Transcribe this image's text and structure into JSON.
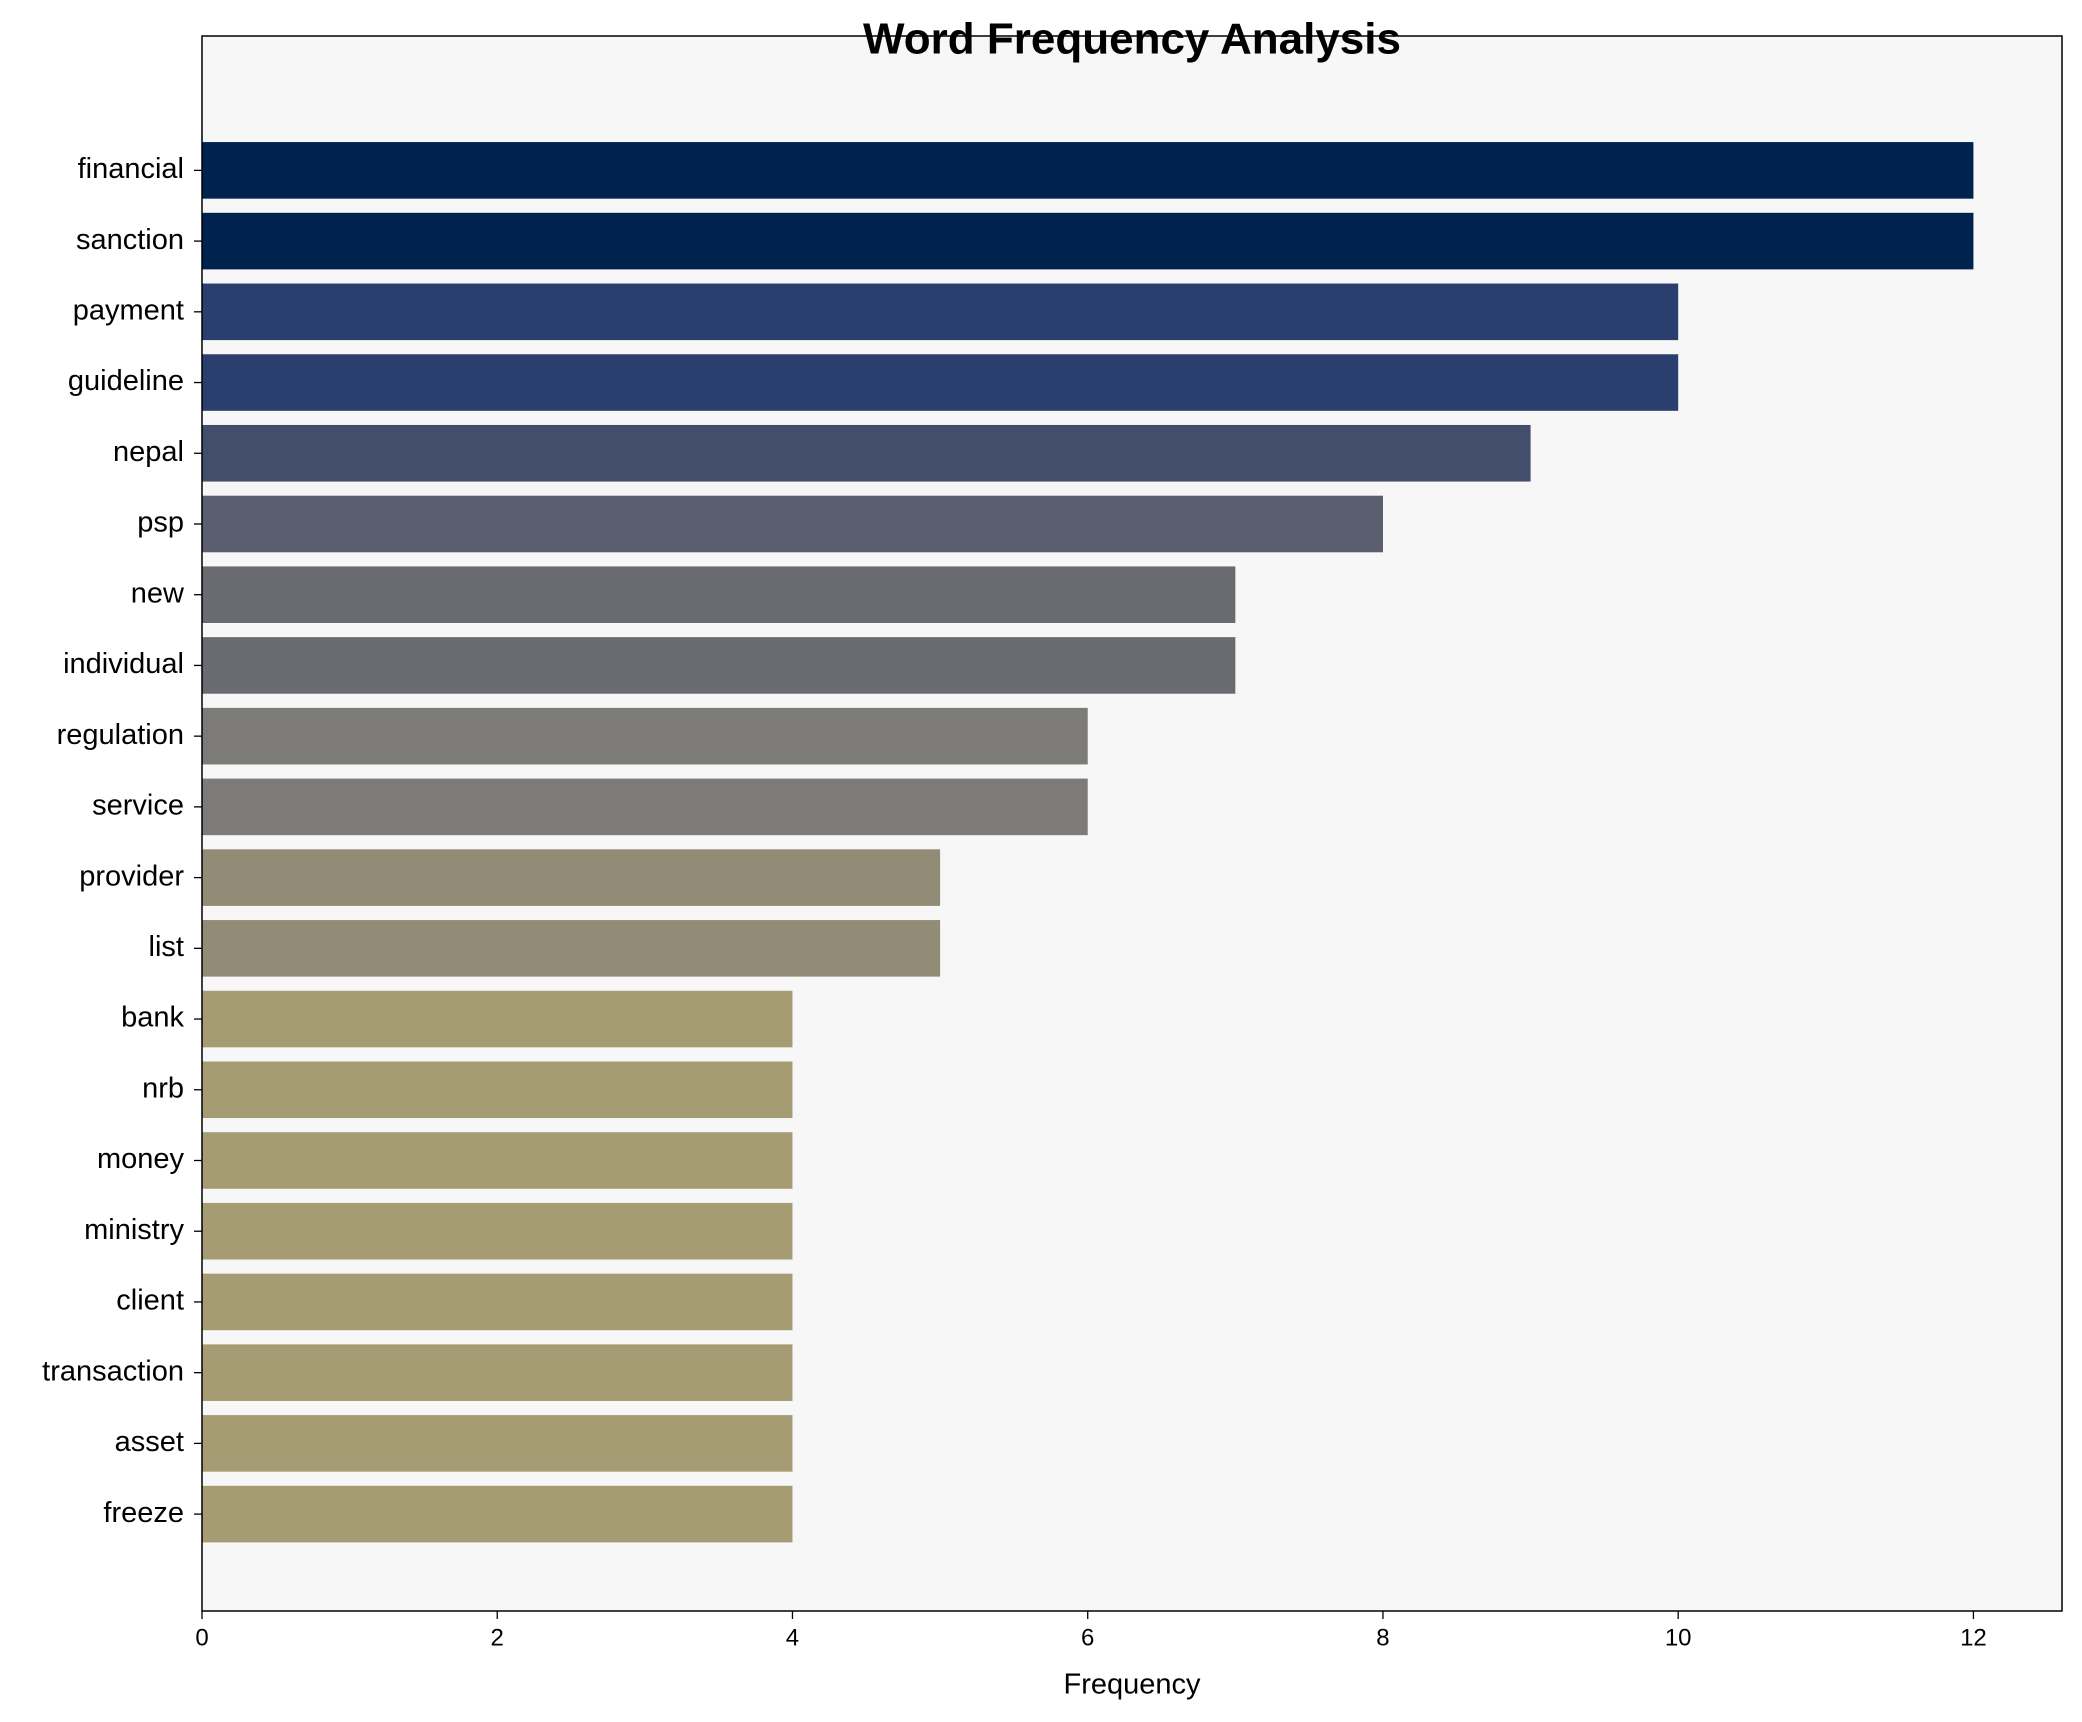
{
  "chart_data": {
    "type": "barh",
    "title": "Word Frequency Analysis",
    "x_label": "Frequency",
    "categories": [
      "financial",
      "sanction",
      "payment",
      "guideline",
      "nepal",
      "psp",
      "new",
      "individual",
      "regulation",
      "service",
      "provider",
      "list",
      "bank",
      "nrb",
      "money",
      "ministry",
      "client",
      "transaction",
      "asset",
      "freeze"
    ],
    "values": [
      12,
      12,
      10,
      10,
      9,
      8,
      7,
      7,
      6,
      6,
      5,
      5,
      4,
      4,
      4,
      4,
      4,
      4,
      4,
      4
    ],
    "colors": [
      "#00224e",
      "#00224e",
      "#2a3f6d",
      "#2a3f6d",
      "#434e6c",
      "#5a5e6e",
      "#6a6b70",
      "#6a6b70",
      "#7c7b78",
      "#7c7b78",
      "#928c77",
      "#928c77",
      "#a59c74",
      "#a59c74",
      "#a59c74",
      "#a59c74",
      "#a59c74",
      "#a59c74",
      "#a59c74",
      "#a59c74"
    ],
    "xlim": [
      0,
      12.6
    ],
    "xticks": [
      0,
      2,
      4,
      6,
      8,
      10,
      12
    ]
  }
}
